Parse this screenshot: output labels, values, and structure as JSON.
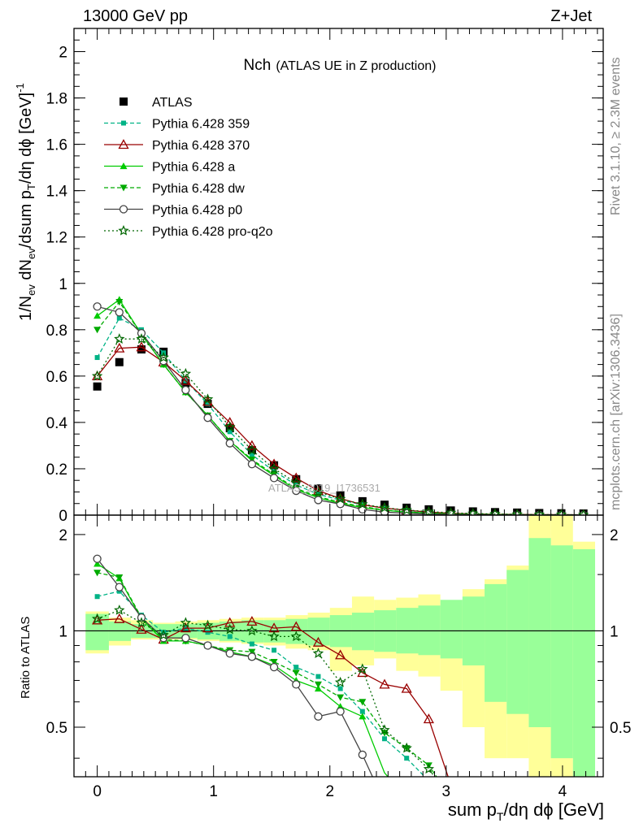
{
  "header": {
    "left": "13000 GeV pp",
    "right": "Z+Jet",
    "side_rivet": "Rivet 3.1.10, ≥ 2.3M events",
    "side_mcplots": "mcplots.cern.ch [arXiv:1306.3436]",
    "watermark": "ATLAS_2019_I1736531"
  },
  "main_title": "Nch",
  "main_subtitle": "(ATLAS UE in Z production)",
  "chart_data": [
    {
      "type": "line",
      "panel": "main",
      "title": "Nch (ATLAS UE in Z production)",
      "xlabel": "sum p_T/dη dϕ [GeV]",
      "ylabel": "1/N_ev dN_ev/dsum p_T/dη dϕ [GeV]^-1",
      "xlim": [
        -0.2,
        4.35
      ],
      "ylim": [
        0,
        2.1
      ],
      "yticks": [
        0,
        0.2,
        0.4,
        0.6,
        0.8,
        1,
        1.2,
        1.4,
        1.6,
        1.8,
        2
      ],
      "ytick_labels": [
        "0",
        "0.2",
        "0.4",
        "0.6",
        "0.8",
        "1",
        "1.2",
        "1.4",
        "1.6",
        "1.8",
        "2"
      ],
      "legend_position": "top-left",
      "x": [
        0,
        0.19,
        0.38,
        0.57,
        0.76,
        0.95,
        1.14,
        1.33,
        1.52,
        1.71,
        1.9,
        2.09,
        2.28,
        2.47,
        2.66,
        2.85,
        3.04,
        3.23,
        3.42,
        3.61,
        3.8,
        3.99,
        4.18
      ],
      "series": [
        {
          "name": "ATLAS",
          "color": "#000000",
          "style": "data",
          "marker": "square",
          "values": [
            0.555,
            0.66,
            0.715,
            0.705,
            0.57,
            0.48,
            0.375,
            0.28,
            0.215,
            0.155,
            0.115,
            0.085,
            0.06,
            0.045,
            0.032,
            0.025,
            0.02,
            0.016,
            0.013,
            0.011,
            0.009,
            0.008,
            0.007
          ]
        },
        {
          "name": "Pythia 6.428 359",
          "color": "#00b386",
          "style": "dashed",
          "marker": "square-small",
          "values": [
            0.68,
            0.85,
            0.8,
            0.7,
            0.58,
            0.48,
            0.36,
            0.26,
            0.19,
            0.13,
            0.09,
            0.065,
            0.045,
            0.03,
            0.02,
            0.012,
            0.008,
            0.005,
            0.004,
            0.003,
            0.002,
            0.002,
            0.001
          ]
        },
        {
          "name": "Pythia 6.428 370",
          "color": "#990000",
          "style": "solid",
          "marker": "triangle-open",
          "values": [
            0.6,
            0.72,
            0.725,
            0.66,
            0.58,
            0.49,
            0.4,
            0.3,
            0.22,
            0.16,
            0.105,
            0.072,
            0.045,
            0.03,
            0.021,
            0.013,
            0.008,
            0.005,
            0.004,
            0.003,
            0.002,
            0.002,
            0.001
          ]
        },
        {
          "name": "Pythia 6.428 a",
          "color": "#00cc00",
          "style": "solid",
          "marker": "triangle",
          "values": [
            0.86,
            0.93,
            0.78,
            0.65,
            0.53,
            0.43,
            0.32,
            0.235,
            0.17,
            0.11,
            0.075,
            0.05,
            0.033,
            0.021,
            0.013,
            0.008,
            0.005,
            0.003,
            0.002,
            0.001,
            0.001,
            0.001,
            0.001
          ]
        },
        {
          "name": "Pythia 6.428 dw",
          "color": "#00aa00",
          "style": "dashed",
          "marker": "triangle-down",
          "values": [
            0.8,
            0.92,
            0.78,
            0.65,
            0.53,
            0.43,
            0.32,
            0.24,
            0.175,
            0.115,
            0.08,
            0.055,
            0.037,
            0.022,
            0.014,
            0.009,
            0.006,
            0.004,
            0.002,
            0.002,
            0.001,
            0.001,
            0.001
          ]
        },
        {
          "name": "Pythia 6.428 p0",
          "color": "#444444",
          "style": "solid",
          "marker": "circle-open",
          "values": [
            0.9,
            0.875,
            0.785,
            0.665,
            0.54,
            0.42,
            0.31,
            0.22,
            0.16,
            0.105,
            0.065,
            0.048,
            0.025,
            0.013,
            0.008,
            0.005,
            0.003,
            0.002,
            0.001,
            0.001,
            0.001,
            0.001,
            0.001
          ]
        },
        {
          "name": "Pythia 6.428 pro-q2o",
          "color": "#006600",
          "style": "dotted",
          "marker": "star-open",
          "values": [
            0.6,
            0.76,
            0.76,
            0.68,
            0.61,
            0.5,
            0.38,
            0.28,
            0.2,
            0.14,
            0.1,
            0.07,
            0.047,
            0.032,
            0.022,
            0.015,
            0.01,
            0.007,
            0.005,
            0.003,
            0.002,
            0.002,
            0.001
          ]
        }
      ]
    },
    {
      "type": "line",
      "panel": "ratio",
      "ylabel": "Ratio to ATLAS",
      "xlabel": "sum p_T/dη dϕ [GeV]",
      "xlim": [
        -0.2,
        4.35
      ],
      "ylim": [
        0.35,
        2.3
      ],
      "yticks": [
        0.5,
        1,
        2
      ],
      "ytick_labels": [
        "0.5",
        "1",
        "2"
      ],
      "xticks": [
        0,
        1,
        2,
        3,
        4
      ],
      "xtick_labels": [
        "0",
        "1",
        "2",
        "3",
        "4"
      ],
      "bin_edges": [
        -0.1,
        0.1,
        0.29,
        0.48,
        0.67,
        0.86,
        1.05,
        1.24,
        1.43,
        1.62,
        1.81,
        2.0,
        2.19,
        2.38,
        2.57,
        2.76,
        2.95,
        3.14,
        3.33,
        3.52,
        3.71,
        3.9,
        4.09,
        4.28
      ],
      "band_stat": {
        "color": "#99ff99",
        "lo": [
          0.87,
          0.93,
          0.95,
          0.95,
          0.95,
          0.94,
          0.93,
          0.92,
          0.92,
          0.91,
          0.9,
          0.89,
          0.87,
          0.86,
          0.85,
          0.84,
          0.82,
          0.78,
          0.6,
          0.55,
          0.5,
          0.4,
          0.35
        ],
        "hi": [
          1.13,
          1.07,
          1.05,
          1.05,
          1.05,
          1.06,
          1.07,
          1.08,
          1.08,
          1.09,
          1.1,
          1.12,
          1.14,
          1.16,
          1.18,
          1.2,
          1.25,
          1.28,
          1.4,
          1.55,
          1.95,
          1.85,
          1.8
        ]
      },
      "band_syst": {
        "color": "#ffff99",
        "lo": [
          0.85,
          0.9,
          0.94,
          0.94,
          0.94,
          0.93,
          0.92,
          0.91,
          0.9,
          0.88,
          0.87,
          0.75,
          0.78,
          0.82,
          0.75,
          0.72,
          0.65,
          0.5,
          0.4,
          0.4,
          0.35,
          0.35,
          0.35
        ],
        "hi": [
          1.15,
          1.1,
          1.08,
          1.06,
          1.07,
          1.08,
          1.09,
          1.1,
          1.1,
          1.12,
          1.14,
          1.18,
          1.28,
          1.25,
          1.27,
          1.3,
          1.2,
          1.35,
          1.45,
          1.6,
          2.3,
          2.3,
          1.9
        ]
      },
      "x": [
        0,
        0.19,
        0.38,
        0.57,
        0.76,
        0.95,
        1.14,
        1.33,
        1.52,
        1.71,
        1.9,
        2.09,
        2.28,
        2.47,
        2.66,
        2.85,
        3.04
      ],
      "series": [
        {
          "name": "Pythia 6.428 359",
          "color": "#00b386",
          "style": "dashed",
          "marker": "square-small",
          "values": [
            1.28,
            1.33,
            1.12,
            0.99,
            1.02,
            0.99,
            0.96,
            0.91,
            0.87,
            0.77,
            0.72,
            0.66,
            0.56,
            0.46,
            0.4,
            0.34,
            0.3
          ]
        },
        {
          "name": "Pythia 6.428 370",
          "color": "#990000",
          "style": "solid",
          "marker": "triangle-open",
          "values": [
            1.08,
            1.09,
            1.01,
            0.94,
            1.02,
            1.02,
            1.06,
            1.07,
            1.02,
            1.03,
            0.92,
            0.84,
            0.74,
            0.68,
            0.66,
            0.53,
            0.33
          ]
        },
        {
          "name": "Pythia 6.428 a",
          "color": "#00cc00",
          "style": "solid",
          "marker": "triangle",
          "values": [
            1.62,
            1.46,
            1.09,
            0.93,
            0.93,
            0.9,
            0.86,
            0.83,
            0.78,
            0.7,
            0.66,
            0.58,
            0.54,
            0.36,
            0.3,
            0.3,
            0.3
          ]
        },
        {
          "name": "Pythia 6.428 dw",
          "color": "#00aa00",
          "style": "dashed",
          "marker": "triangle-down",
          "values": [
            1.52,
            1.47,
            1.1,
            0.94,
            0.93,
            0.9,
            0.87,
            0.86,
            0.8,
            0.74,
            0.68,
            0.62,
            0.6,
            0.48,
            0.43,
            0.38,
            0.3
          ]
        },
        {
          "name": "Pythia 6.428 p0",
          "color": "#444444",
          "style": "solid",
          "marker": "circle-open",
          "values": [
            1.68,
            1.37,
            1.1,
            0.95,
            0.95,
            0.9,
            0.85,
            0.83,
            0.77,
            0.68,
            0.54,
            0.56,
            0.41,
            0.29,
            0.29,
            0.29,
            0.29
          ]
        },
        {
          "name": "Pythia 6.428 pro-q2o",
          "color": "#006600",
          "style": "dotted",
          "marker": "star-open",
          "values": [
            1.09,
            1.16,
            1.06,
            0.97,
            1.06,
            1.04,
            1.01,
            1.0,
            0.96,
            0.96,
            0.85,
            0.69,
            0.76,
            0.49,
            0.43,
            0.37,
            0.3
          ]
        }
      ]
    }
  ]
}
